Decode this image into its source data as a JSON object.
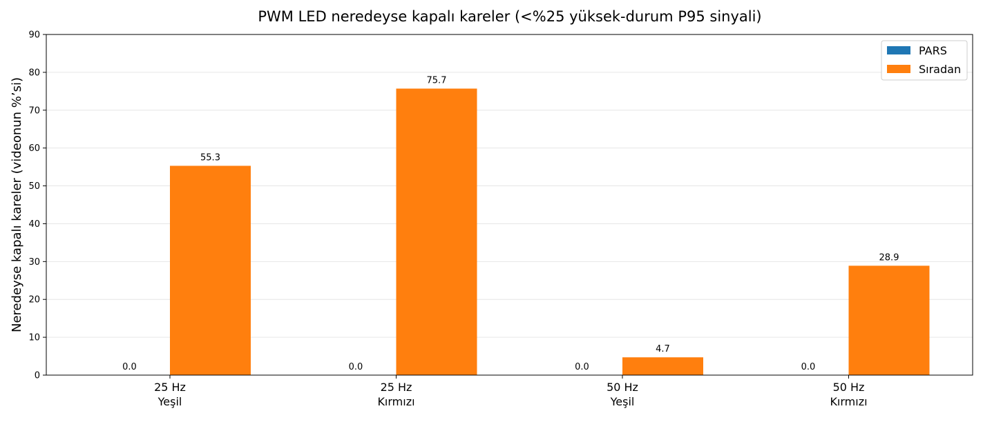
{
  "chart_data": {
    "type": "bar",
    "title": "PWM LED neredeyse kapalı kareler (<%25 yüksek-durum P95 sinyali)",
    "xlabel": "",
    "ylabel": "Neredeyse kapalı kareler (videonun %’si)",
    "ylim": [
      0,
      90
    ],
    "yticks": [
      "0",
      "10",
      "20",
      "30",
      "40",
      "50",
      "60",
      "70",
      "80",
      "90"
    ],
    "categories": [
      [
        "25 Hz",
        "Yeşil"
      ],
      [
        "25 Hz",
        "Kırmızı"
      ],
      [
        "50 Hz",
        "Yeşil"
      ],
      [
        "50 Hz",
        "Kırmızı"
      ]
    ],
    "series": [
      {
        "name": "PARS",
        "color": "#1f77b4",
        "values": [
          0.0,
          0.0,
          0.0,
          0.0
        ],
        "labels": [
          "0.0",
          "0.0",
          "0.0",
          "0.0"
        ]
      },
      {
        "name": "Sıradan",
        "color": "#ff7f0e",
        "values": [
          55.3,
          75.7,
          4.7,
          28.9
        ],
        "labels": [
          "55.3",
          "75.7",
          "4.7",
          "28.9"
        ]
      }
    ],
    "grid": "y",
    "legend_position": "top-right"
  }
}
